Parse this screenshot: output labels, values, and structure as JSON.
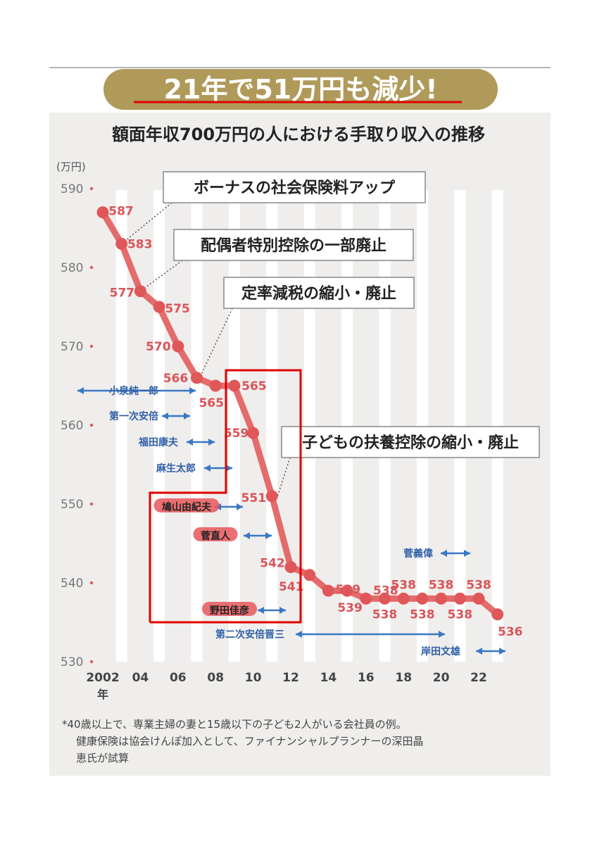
{
  "banner": "21年で51万円も減少!",
  "subtitle": "額面年収700万円の人における手取り収入の推移",
  "footnote": [
    "*40歳以上で、専業主婦の妻と15歳以下の子ども2人がいる会社員の例。",
    "健康保険は協会けんぽ加入として、ファイナンシャルプランナーの深田晶",
    "恵氏が試算"
  ],
  "colors": {
    "line": "#e25c5e",
    "point": "#e05759",
    "value_label": "#d9545a",
    "pm_label": "#2f5fa8",
    "arrow": "#3a78c4",
    "banner_bg": "#b09a5a",
    "banner_text": "#ffffff",
    "underline": "#e00000",
    "annotation_box": "#e00000",
    "panel_bg": "#efeeec",
    "stripe": "#ffffff",
    "highlight": "#e8575c"
  },
  "chart_data": {
    "type": "line",
    "title": "額面年収700万円の人における手取り収入の推移",
    "ylabel": "(万円)",
    "ylim": [
      530,
      590
    ],
    "yticks": [
      590,
      580,
      570,
      560,
      550,
      540,
      530
    ],
    "xtick_labels": [
      "2002",
      "04",
      "06",
      "08",
      "10",
      "12",
      "14",
      "16",
      "18",
      "20",
      "22"
    ],
    "xtick_values": [
      2002,
      2004,
      2006,
      2008,
      2010,
      2012,
      2014,
      2016,
      2018,
      2020,
      2022
    ],
    "x_unit_label": "年",
    "grid": "vertical stripes",
    "series": [
      {
        "x": [
          2002,
          2003,
          2004,
          2005,
          2006,
          2007,
          2008,
          2009,
          2010,
          2011,
          2012,
          2013,
          2014,
          2015,
          2016,
          2017,
          2018,
          2019,
          2020,
          2021,
          2022,
          2023
        ],
        "values": [
          587,
          583,
          577,
          575,
          570,
          566,
          565,
          565,
          559,
          551,
          542,
          541,
          539,
          539,
          538,
          538,
          538,
          538,
          538,
          538,
          538,
          536
        ],
        "labels": [
          "587",
          "583",
          "577",
          "575",
          "570",
          "566",
          "565",
          "565",
          "559",
          "551",
          "542",
          "541",
          "539",
          "539",
          "538",
          "538",
          "538",
          "538",
          "538",
          "538",
          "538",
          "536"
        ]
      }
    ],
    "annotations": [
      {
        "text": "ボーナスの社会保険料アップ",
        "x": 2003
      },
      {
        "text": "配偶者特別控除の一部廃止",
        "x": 2004
      },
      {
        "text": "定率減税の縮小・廃止",
        "x": 2007
      },
      {
        "text": "子どもの扶養控除の縮小・廃止",
        "x": 2011
      }
    ],
    "prime_ministers": [
      {
        "name": "小泉純一郎",
        "start": 2001.3,
        "end": 2006.7
      },
      {
        "name": "第一次安倍",
        "start": 2006.7,
        "end": 2007.7
      },
      {
        "name": "福田康夫",
        "start": 2007.7,
        "end": 2008.7
      },
      {
        "name": "麻生太郎",
        "start": 2008.7,
        "end": 2009.7
      },
      {
        "name": "鳩山由紀夫",
        "start": 2009.7,
        "end": 2010.4
      },
      {
        "name": "菅直人",
        "start": 2010.4,
        "end": 2011.7
      },
      {
        "name": "野田佳彦",
        "start": 2011.7,
        "end": 2012.9
      },
      {
        "name": "第二次安倍晋三",
        "start": 2012.9,
        "end": 2020.6
      },
      {
        "name": "菅義偉",
        "start": 2020.6,
        "end": 2021.6
      },
      {
        "name": "岸田文雄",
        "start": 2021.6,
        "end": 2023.4
      }
    ]
  }
}
